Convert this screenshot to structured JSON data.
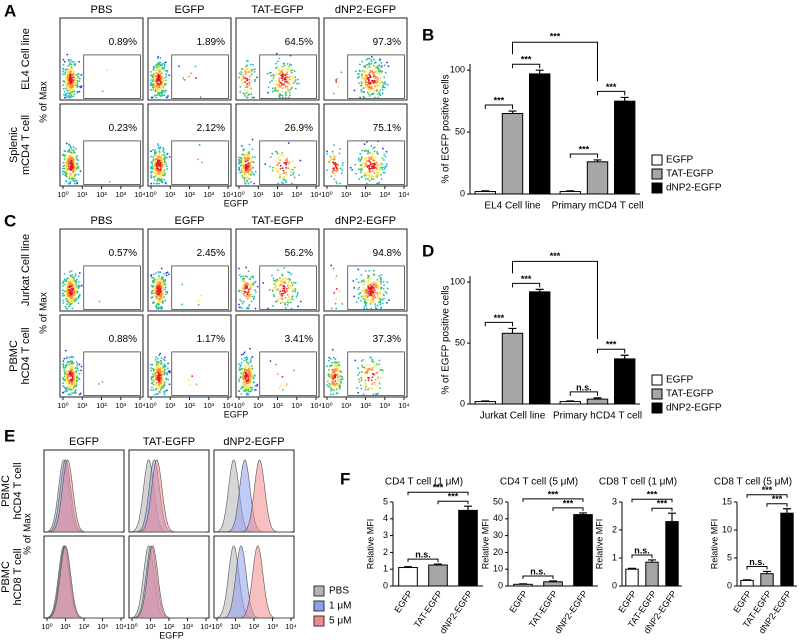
{
  "chart_data": [
    {
      "type": "flow",
      "panel": "A",
      "columns": [
        "PBS",
        "EGFP",
        "TAT-EGFP",
        "dNP2-EGFP"
      ],
      "rows": [
        [
          "EL4 Cell line"
        ],
        [
          "Splenic",
          "mCD4 T cell"
        ]
      ],
      "ylabel": "% of Max",
      "xlabel": "EGFP",
      "xscale": "log",
      "xlim": [
        1,
        10000
      ],
      "xticks": [
        {
          "value": 1,
          "label": "10⁰"
        },
        {
          "value": 10,
          "label": "10¹"
        },
        {
          "value": 100,
          "label": "10²"
        },
        {
          "value": 1000,
          "label": "10³"
        },
        {
          "value": 10000,
          "label": "10⁴"
        }
      ],
      "values": [
        [
          0.89,
          1.89,
          64.5,
          97.3
        ],
        [
          0.23,
          2.12,
          26.9,
          75.1
        ]
      ],
      "value_labels": [
        [
          "0.89%",
          "1.89%",
          "64.5%",
          "97.3%"
        ],
        [
          "0.23%",
          "2.12%",
          "26.9%",
          "75.1%"
        ]
      ]
    },
    {
      "type": "bar",
      "panel": "B",
      "ylabel": "% of EGFP positive cells",
      "categories": [
        "EL4 Cell line",
        "Primary mCD4 T cell"
      ],
      "series": [
        {
          "name": "EGFP",
          "color": "#ffffff",
          "values": [
            2,
            2
          ],
          "errors": [
            0.5,
            0.5
          ]
        },
        {
          "name": "TAT-EGFP",
          "color": "#a6a6a6",
          "values": [
            65,
            26
          ],
          "errors": [
            2,
            1.5
          ]
        },
        {
          "name": "dNP2-EGFP",
          "color": "#000000",
          "values": [
            97,
            75
          ],
          "errors": [
            3,
            3
          ]
        }
      ],
      "ylim": [
        0,
        105
      ],
      "yticks": [
        0,
        50,
        100
      ],
      "legend": "right",
      "comparisons": [
        {
          "label": "***",
          "category": 0,
          "series": [
            0,
            1
          ]
        },
        {
          "label": "***",
          "category": 0,
          "series": [
            1,
            2
          ]
        },
        {
          "label": "***",
          "category": 1,
          "series": [
            0,
            1
          ]
        },
        {
          "label": "***",
          "category": 1,
          "series": [
            1,
            2
          ]
        },
        {
          "label": "***",
          "categories": [
            0,
            1
          ]
        }
      ]
    },
    {
      "type": "flow",
      "panel": "C",
      "columns": [
        "PBS",
        "EGFP",
        "TAT-EGFP",
        "dNP2-EGFP"
      ],
      "rows": [
        [
          "Jurkat Cell line"
        ],
        [
          "PBMC",
          "hCD4 T cell"
        ]
      ],
      "ylabel": "% of Max",
      "xlabel": "EGFP",
      "xscale": "log",
      "xlim": [
        1,
        10000
      ],
      "xticks": [
        {
          "value": 1,
          "label": "10⁰"
        },
        {
          "value": 10,
          "label": "10¹"
        },
        {
          "value": 100,
          "label": "10²"
        },
        {
          "value": 1000,
          "label": "10³"
        },
        {
          "value": 10000,
          "label": "10⁴"
        }
      ],
      "values": [
        [
          0.57,
          2.45,
          56.2,
          94.8
        ],
        [
          0.88,
          1.17,
          3.41,
          37.3
        ]
      ],
      "value_labels": [
        [
          "0.57%",
          "2.45%",
          "56.2%",
          "94.8%"
        ],
        [
          "0.88%",
          "1.17%",
          "3.41%",
          "37.3%"
        ]
      ]
    },
    {
      "type": "bar",
      "panel": "D",
      "ylabel": "% of EGFP positive cells",
      "categories": [
        "Jurkat Cell line",
        "Primary hCD4 T cell"
      ],
      "series": [
        {
          "name": "EGFP",
          "color": "#ffffff",
          "values": [
            2,
            2
          ],
          "errors": [
            0.5,
            0.5
          ]
        },
        {
          "name": "TAT-EGFP",
          "color": "#a6a6a6",
          "values": [
            58,
            4
          ],
          "errors": [
            4,
            1
          ]
        },
        {
          "name": "dNP2-EGFP",
          "color": "#000000",
          "values": [
            92,
            37
          ],
          "errors": [
            2,
            3
          ]
        }
      ],
      "ylim": [
        0,
        105
      ],
      "yticks": [
        0,
        50,
        100
      ],
      "legend": "right",
      "comparisons": [
        {
          "label": "***",
          "category": 0,
          "series": [
            0,
            1
          ]
        },
        {
          "label": "***",
          "category": 0,
          "series": [
            1,
            2
          ]
        },
        {
          "label": "n.s.",
          "category": 1,
          "series": [
            0,
            1
          ]
        },
        {
          "label": "***",
          "category": 1,
          "series": [
            1,
            2
          ]
        },
        {
          "label": "***",
          "categories": [
            0,
            1
          ]
        }
      ]
    },
    {
      "type": "histogram-overlay",
      "panel": "E",
      "columns": [
        "EGFP",
        "TAT-EGFP",
        "dNP2-EGFP"
      ],
      "rows": [
        [
          "PBMC",
          "hCD4 T cell"
        ],
        [
          "PBMC",
          "hCD8 T cell"
        ]
      ],
      "ylabel": "% of Max",
      "xlabel": "EGFP",
      "xscale": "log",
      "xlim": [
        1,
        10000
      ],
      "xticks": [
        {
          "value": 1,
          "label": "10⁰"
        },
        {
          "value": 10,
          "label": "10¹"
        },
        {
          "value": 100,
          "label": "10²"
        },
        {
          "value": 1000,
          "label": "10³"
        },
        {
          "value": 10000,
          "label": "10⁴"
        }
      ],
      "series": [
        {
          "name": "PBS",
          "color": "#b4b4b4"
        },
        {
          "name": "1 μM",
          "color": "#8f9ff0"
        },
        {
          "name": "5 μM",
          "color": "#f08a8a"
        }
      ],
      "peaks": [
        [
          [
            8,
            10,
            13
          ],
          [
            8,
            16,
            22
          ],
          [
            8,
            32,
            200
          ]
        ],
        [
          [
            8,
            9,
            10
          ],
          [
            8,
            11,
            13
          ],
          [
            8,
            20,
            160
          ]
        ]
      ]
    },
    {
      "type": "bar",
      "panel": "F",
      "title": "CD4 T cell (1 μM)",
      "ylabel": "Relative MFI",
      "categories": [
        "EGFP",
        "TAT-EGFP",
        "dNP2-EGFP"
      ],
      "values": [
        1.1,
        1.25,
        4.5
      ],
      "errors": [
        0.05,
        0.05,
        0.25
      ],
      "colors": [
        "#ffffff",
        "#a6a6a6",
        "#000000"
      ],
      "ylim": [
        0,
        5
      ],
      "yticks": [
        0,
        1,
        2,
        3,
        4,
        5
      ],
      "comparisons": [
        {
          "label": "n.s.",
          "categories": [
            0,
            1
          ]
        },
        {
          "label": "***",
          "categories": [
            1,
            2
          ]
        },
        {
          "label": "***",
          "categories": [
            0,
            2
          ]
        }
      ]
    },
    {
      "type": "bar",
      "title": "CD4 T cell (5 μM)",
      "ylabel": "Relative MFI",
      "categories": [
        "EGFP",
        "TAT-EGFP",
        "dNP2-EGFP"
      ],
      "values": [
        1,
        2.5,
        42.5
      ],
      "errors": [
        0.3,
        0.5,
        1
      ],
      "colors": [
        "#ffffff",
        "#a6a6a6",
        "#000000"
      ],
      "ylim": [
        0,
        50
      ],
      "yticks": [
        0,
        10,
        20,
        30,
        40,
        50
      ],
      "comparisons": [
        {
          "label": "n.s.",
          "categories": [
            0,
            1
          ]
        },
        {
          "label": "***",
          "categories": [
            1,
            2
          ]
        },
        {
          "label": "***",
          "categories": [
            0,
            2
          ]
        }
      ]
    },
    {
      "type": "bar",
      "title": "CD8 T cell (1 μM)",
      "ylabel": "Relative MFI",
      "categories": [
        "EGFP",
        "TAT-EGFP",
        "dNP2-EGFP"
      ],
      "values": [
        0.6,
        0.85,
        2.3
      ],
      "errors": [
        0.03,
        0.08,
        0.3
      ],
      "colors": [
        "#ffffff",
        "#a6a6a6",
        "#000000"
      ],
      "ylim": [
        0,
        3
      ],
      "yticks": [
        0,
        1,
        2,
        3
      ],
      "comparisons": [
        {
          "label": "n.s.",
          "categories": [
            0,
            1
          ]
        },
        {
          "label": "***",
          "categories": [
            1,
            2
          ]
        },
        {
          "label": "***",
          "categories": [
            0,
            2
          ]
        }
      ]
    },
    {
      "type": "bar",
      "title": "CD8 T cell (5 μM)",
      "ylabel": "Relative MFI",
      "categories": [
        "EGFP",
        "TAT-EGFP",
        "dNP2-EGFP"
      ],
      "values": [
        1,
        2.2,
        13
      ],
      "errors": [
        0.1,
        0.4,
        0.8
      ],
      "colors": [
        "#ffffff",
        "#a6a6a6",
        "#000000"
      ],
      "ylim": [
        0,
        15
      ],
      "yticks": [
        0,
        5,
        10,
        15
      ],
      "comparisons": [
        {
          "label": "n.s.",
          "categories": [
            0,
            1
          ]
        },
        {
          "label": "***",
          "categories": [
            1,
            2
          ]
        },
        {
          "label": "***",
          "categories": [
            0,
            2
          ]
        }
      ]
    }
  ]
}
